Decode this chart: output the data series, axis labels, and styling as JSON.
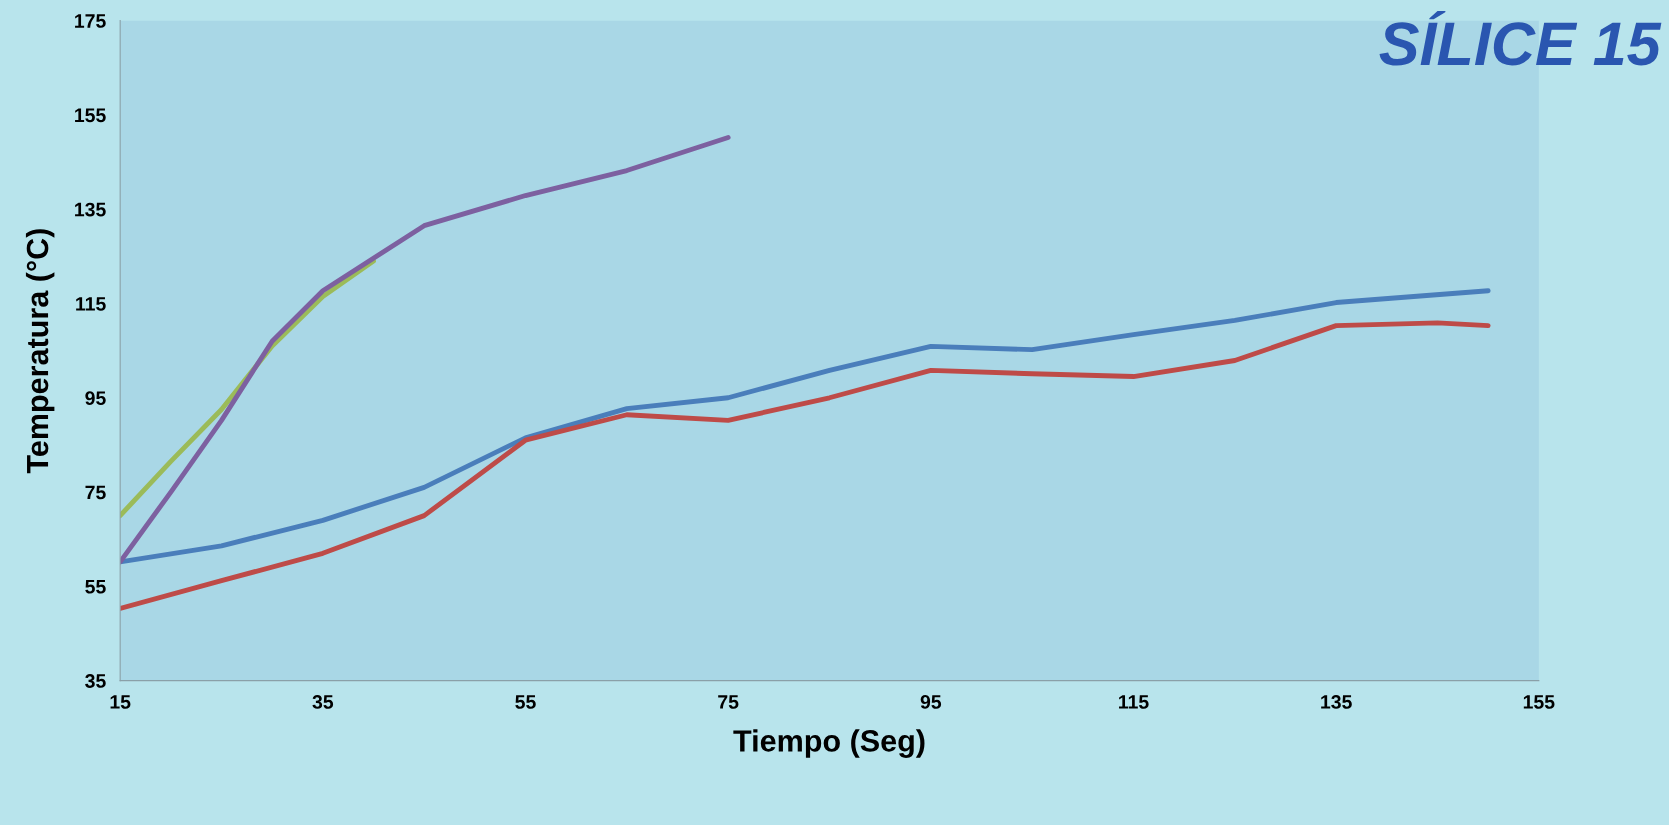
{
  "chart_data": {
    "type": "line",
    "title": "SÍLICE 15",
    "xlabel": "Tiempo (Seg)",
    "ylabel": "Temperatura (°C)",
    "xlim": [
      15,
      155
    ],
    "xticks": [
      15,
      35,
      55,
      75,
      95,
      115,
      135,
      155
    ],
    "ylim": [
      35,
      175
    ],
    "yticks": [
      35,
      55,
      75,
      95,
      115,
      135,
      155,
      175
    ],
    "grid": false,
    "legend": false,
    "marker": "none",
    "line_style": "solid",
    "series": [
      {
        "color": "#4a7ebb",
        "x": [
          15,
          25,
          35,
          45,
          55,
          65,
          75,
          85,
          95,
          105,
          115,
          125,
          135,
          150
        ],
        "values": [
          60.2,
          63.6,
          69,
          76,
          86.5,
          92.7,
          95,
          100.8,
          105.9,
          105.2,
          108.4,
          111.4,
          115.2,
          117.7
        ]
      },
      {
        "color": "#be4b48",
        "x": [
          15,
          25,
          35,
          45,
          55,
          65,
          75,
          85,
          95,
          105,
          115,
          125,
          135,
          145,
          150
        ],
        "values": [
          50.3,
          56.2,
          62,
          70,
          86,
          91.4,
          90.2,
          95,
          100.8,
          100.1,
          99.5,
          102.9,
          110.3,
          110.9,
          110.3
        ]
      },
      {
        "color": "#9bbb59",
        "x": [
          15,
          20,
          25,
          30,
          35,
          40
        ],
        "values": [
          70,
          81.5,
          92.5,
          106,
          116.5,
          124
        ]
      },
      {
        "color": "#7d60a0",
        "x": [
          15,
          20,
          25,
          30,
          35,
          45,
          55,
          65,
          75
        ],
        "values": [
          60.2,
          75,
          90.2,
          107,
          117.7,
          131.5,
          137.9,
          143.2,
          150.2
        ]
      }
    ]
  }
}
